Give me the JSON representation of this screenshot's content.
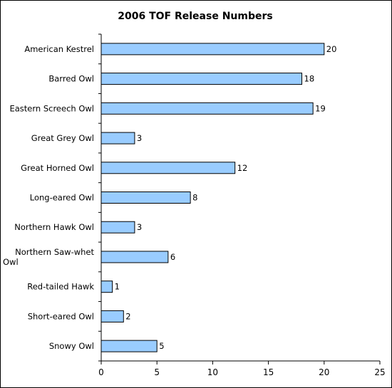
{
  "chart_data": {
    "type": "bar",
    "orientation": "horizontal",
    "title": "2006 TOF Release Numbers",
    "categories": [
      "American Kestrel",
      "Barred Owl",
      "Eastern Screech Owl",
      "Great Grey Owl",
      "Great Horned Owl",
      "Long-eared Owl",
      "Northern Hawk Owl",
      "Northern Saw-whet Owl",
      "Red-tailed Hawk",
      "Short-eared Owl",
      "Snowy Owl"
    ],
    "values": [
      20,
      18,
      19,
      3,
      12,
      8,
      3,
      6,
      1,
      2,
      5
    ],
    "xlim": [
      0,
      25
    ],
    "xticks": [
      0,
      5,
      10,
      15,
      20,
      25
    ],
    "grid": false,
    "legend": "none",
    "bar_color": "#99ccff",
    "bar_stroke": "#000000"
  }
}
